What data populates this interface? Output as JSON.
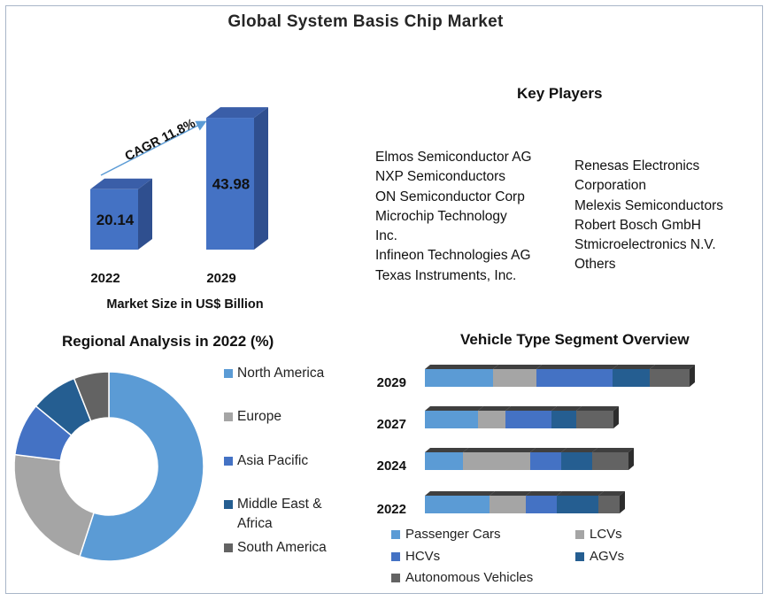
{
  "title": "Global System Basis Chip Market",
  "market_chart": {
    "caption": "Market Size in US$ Billion",
    "cagr_label": "CAGR 11.8%",
    "colors": {
      "front": "#4472c4",
      "side": "#2f4f8f",
      "top": "#3a5ea8"
    }
  },
  "key_players": {
    "title": "Key Players",
    "col1": [
      "Elmos Semiconductor  AG",
      "NXP Semiconductors",
      "ON Semiconductor  Corp",
      "Microchip Technology",
      "Inc.",
      "Infineon Technologies AG",
      "Texas Instruments,  Inc."
    ],
    "col2": [
      "Renesas Electronics",
      "Corporation",
      "Melexis Semiconductors",
      "Robert Bosch GmbH",
      "Stmicroelectronics N.V.",
      "Others"
    ]
  },
  "regional": {
    "title": "Regional Analysis in 2022 (%)",
    "legend": [
      "North America",
      "Europe",
      "Asia Pacific",
      "Middle East &",
      "Africa",
      "South America"
    ]
  },
  "vehicle": {
    "title": "Vehicle Type Segment Overview",
    "legend": [
      "Passenger Cars",
      "LCVs",
      "HCVs",
      "AGVs",
      "Autonomous Vehicles"
    ]
  },
  "chart_data": [
    {
      "type": "bar",
      "categories": [
        "2022",
        "2029"
      ],
      "values": [
        20.14,
        43.98
      ],
      "title": "",
      "xlabel": "Market Size in US$ Billion",
      "ylabel": "",
      "annotation": "CAGR 11.8%",
      "colors": [
        "#4472c4"
      ]
    },
    {
      "type": "pie",
      "title": "Regional Analysis in 2022 (%)",
      "donut": true,
      "labels": [
        "North America",
        "Europe",
        "Asia Pacific",
        "Middle East & Africa",
        "South America"
      ],
      "values": [
        55,
        22,
        9,
        8,
        6
      ],
      "colors": [
        "#5b9bd5",
        "#a5a5a5",
        "#4472c4",
        "#255e91",
        "#636363"
      ]
    },
    {
      "type": "bar",
      "orientation": "horizontal",
      "stacked": true,
      "title": "Vehicle Type Segment Overview",
      "categories": [
        "2029",
        "2027",
        "2024",
        "2022"
      ],
      "series": [
        {
          "name": "Passenger Cars",
          "values": [
            77,
            60,
            43,
            73
          ],
          "color": "#5b9bd5"
        },
        {
          "name": "LCVs",
          "values": [
            49,
            31,
            76,
            41
          ],
          "color": "#a5a5a5"
        },
        {
          "name": "HCVs",
          "values": [
            86,
            52,
            35,
            35
          ],
          "color": "#4472c4"
        },
        {
          "name": "AGVs",
          "values": [
            42,
            28,
            35,
            47
          ],
          "color": "#255e91"
        },
        {
          "name": "Autonomous Vehicles",
          "values": [
            45,
            42,
            41,
            24
          ],
          "color": "#636363"
        }
      ]
    }
  ]
}
